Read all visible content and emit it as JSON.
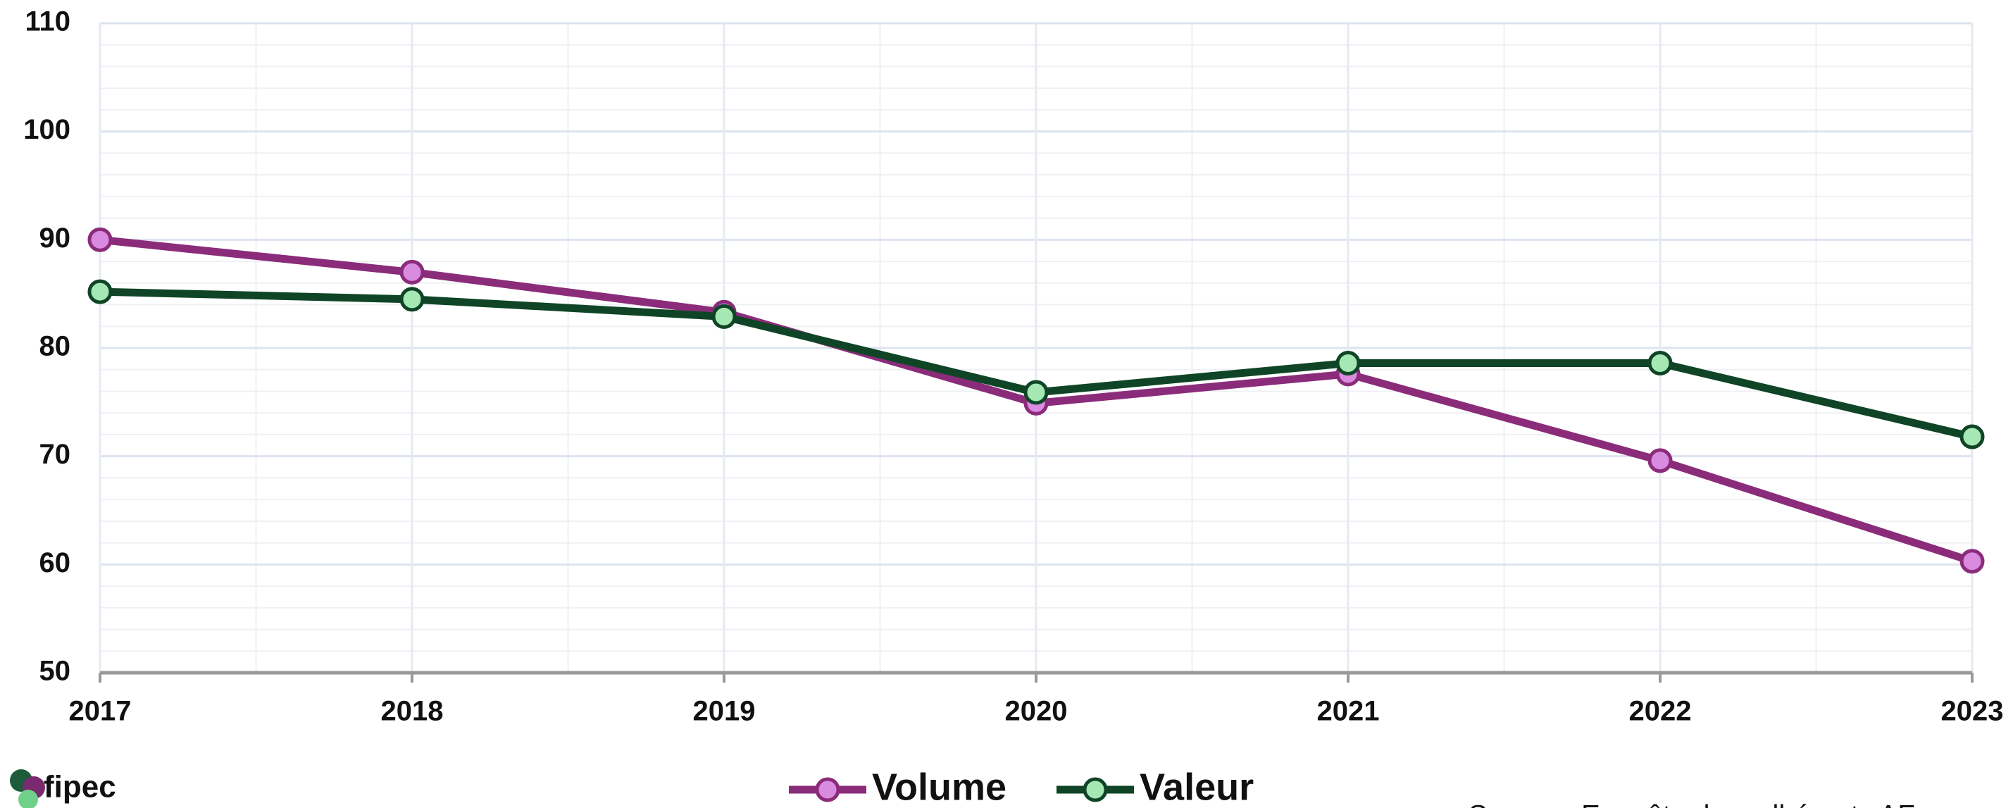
{
  "chart_data": {
    "type": "line",
    "categories": [
      "2017",
      "2018",
      "2019",
      "2020",
      "2021",
      "2022",
      "2023"
    ],
    "series": [
      {
        "name": "Volume",
        "color": "#8b2c7a",
        "marker_color": "#d98be0",
        "values": [
          90,
          87,
          83.3,
          74.9,
          77.6,
          69.6,
          60.3
        ]
      },
      {
        "name": "Valeur",
        "color": "#0f4526",
        "marker_color": "#a6e8b4",
        "values": [
          85.2,
          84.5,
          82.9,
          75.9,
          78.6,
          78.6,
          71.8
        ]
      }
    ],
    "ylim": [
      50,
      110
    ],
    "yticks": [
      50,
      60,
      70,
      80,
      90,
      100,
      110
    ],
    "grid": true,
    "minor_grid": true,
    "legend": "bottom",
    "logo": "fipec",
    "source": "Source : Enquête des adhérents AF"
  }
}
